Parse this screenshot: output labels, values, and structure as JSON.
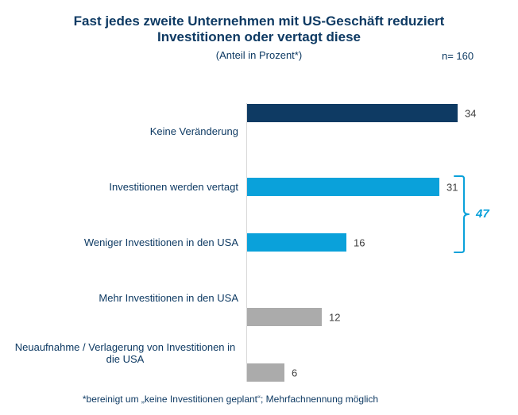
{
  "header": {
    "title_line1": "Fast jedes zweite Unternehmen mit US-Geschäft reduziert",
    "title_line2": "Investitionen oder vertagt diese",
    "subtitle": "(Anteil in Prozent*)",
    "sample_size": "n= 160"
  },
  "colors": {
    "navy": "#0e3a63",
    "accent_cyan": "#0aa1da",
    "gray": "#ababab",
    "value_text": "#404040",
    "axis": "#d9d9d9",
    "background": "#ffffff"
  },
  "chart_data": {
    "type": "bar",
    "orientation": "horizontal",
    "unit": "Prozent",
    "title": "Fast jedes zweite Unternehmen mit US-Geschäft reduziert Investitionen oder vertagt diese",
    "xlabel": "",
    "ylabel": "",
    "xlim": [
      0,
      34
    ],
    "grid": false,
    "legend": false,
    "categories": [
      "Keine Veränderung",
      "Investitionen werden vertagt",
      "Weniger Investitionen in den USA",
      "Mehr Investitionen in den USA",
      "Neuaufnahme / Verlagerung von Investitionen in die USA"
    ],
    "values": [
      34,
      31,
      16,
      12,
      6
    ],
    "items": [
      {
        "label": "Keine Veränderung",
        "value": 34,
        "series": 0
      },
      {
        "label": "Investitionen werden vertagt",
        "value": 31,
        "series": 1
      },
      {
        "label": "Weniger Investitionen in den USA",
        "value": 16,
        "series": 1
      },
      {
        "label": "Mehr Investitionen in den USA",
        "value": 12,
        "series": 2
      },
      {
        "label": "Neuaufnahme / Verlagerung von Investitionen in die USA",
        "value": 6,
        "series": 2
      }
    ],
    "series_colors": [
      "#0e3a63",
      "#0aa1da",
      "#ababab"
    ],
    "bracket": {
      "value": 47,
      "covers": [
        "Investitionen werden vertagt",
        "Weniger Investitionen in den USA"
      ],
      "color": "#0aa1da"
    }
  },
  "footnote": "*bereinigt um „keine Investitionen geplant“; Mehrfachnennung möglich"
}
